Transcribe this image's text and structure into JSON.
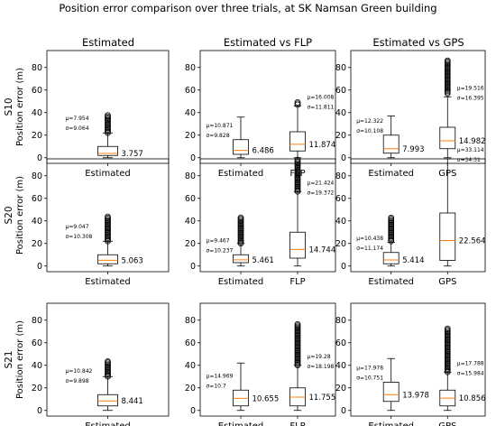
{
  "title": "Position error comparison over three trials, at SK Namsan Green building",
  "column_titles": [
    "Estimated",
    "Estimated vs FLP",
    "Estimated vs GPS"
  ],
  "row_labels": [
    "S10",
    "S20",
    "S21"
  ],
  "ylabel": "Position error (m)",
  "colors": {
    "box": "#000000",
    "median": "#ff7f0e",
    "background": "#ffffff"
  },
  "chart_data": [
    {
      "type": "box",
      "row": "S10",
      "column": "Estimated",
      "ylim": [
        -5,
        95
      ],
      "yticks": [
        0,
        20,
        40,
        60,
        80
      ],
      "categories": [
        "Estimated"
      ],
      "series": [
        {
          "name": "Estimated",
          "q1": 2,
          "median": 3.757,
          "q3": 10,
          "whisker_low": 0,
          "whisker_high": 22,
          "outliers_from": 22,
          "outliers_to": 38,
          "median_label": "3.757",
          "stats": [
            "μ=7.954",
            "σ=9.064"
          ]
        }
      ]
    },
    {
      "type": "box",
      "row": "S10",
      "column": "Estimated vs FLP",
      "ylim": [
        -5,
        95
      ],
      "yticks": [
        0,
        20,
        40,
        60,
        80
      ],
      "categories": [
        "Estimated",
        "FLP"
      ],
      "series": [
        {
          "name": "Estimated",
          "q1": 3,
          "median": 6.486,
          "q3": 16,
          "whisker_low": 0,
          "whisker_high": 36,
          "median_label": "6.486",
          "stats": [
            "μ=10.871",
            "σ=9.828"
          ]
        },
        {
          "name": "FLP",
          "q1": 6,
          "median": 11.874,
          "q3": 23,
          "whisker_low": 0,
          "whisker_high": 46,
          "outliers_from": 47,
          "outliers_to": 50,
          "median_label": "11.874",
          "stats": [
            "μ=16.008",
            "σ=11.811"
          ]
        }
      ]
    },
    {
      "type": "box",
      "row": "S10",
      "column": "Estimated vs GPS",
      "ylim": [
        -5,
        95
      ],
      "yticks": [
        0,
        20,
        40,
        60,
        80
      ],
      "categories": [
        "Estimated",
        "GPS"
      ],
      "series": [
        {
          "name": "Estimated",
          "q1": 4,
          "median": 7.993,
          "q3": 20,
          "whisker_low": 0,
          "whisker_high": 37,
          "median_label": "7.993",
          "stats": [
            "μ=12.322",
            "σ=10.108"
          ]
        },
        {
          "name": "GPS",
          "q1": 8,
          "median": 14.982,
          "q3": 27,
          "whisker_low": 0,
          "whisker_high": 54,
          "outliers_from": 57,
          "outliers_to": 87,
          "median_label": "14.982",
          "stats": [
            "μ=19.516",
            "σ=16.395"
          ]
        }
      ]
    },
    {
      "type": "box",
      "row": "S20",
      "column": "Estimated",
      "ylim": [
        -5,
        95
      ],
      "yticks": [
        0,
        20,
        40,
        60,
        80
      ],
      "categories": [
        "Estimated"
      ],
      "series": [
        {
          "name": "Estimated",
          "q1": 2,
          "median": 5.063,
          "q3": 10,
          "whisker_low": 0,
          "whisker_high": 22,
          "outliers_from": 22,
          "outliers_to": 44,
          "median_label": "5.063",
          "stats": [
            "μ=9.047",
            "σ=10.308"
          ]
        }
      ]
    },
    {
      "type": "box",
      "row": "S20",
      "column": "Estimated vs FLP",
      "ylim": [
        -5,
        95
      ],
      "yticks": [
        0,
        20,
        40,
        60,
        80
      ],
      "categories": [
        "Estimated",
        "FLP"
      ],
      "series": [
        {
          "name": "Estimated",
          "q1": 3,
          "median": 5.461,
          "q3": 10,
          "whisker_low": 0,
          "whisker_high": 20,
          "outliers_from": 20,
          "outliers_to": 43,
          "median_label": "5.461",
          "stats": [
            "μ=9.467",
            "σ=10.237"
          ]
        },
        {
          "name": "FLP",
          "q1": 7,
          "median": 14.744,
          "q3": 30,
          "whisker_low": 0,
          "whisker_high": 66,
          "outliers_from": 66,
          "outliers_to": 95,
          "median_label": "14.744",
          "stats": [
            "μ=21.424",
            "σ=19.372"
          ]
        }
      ]
    },
    {
      "type": "box",
      "row": "S20",
      "column": "Estimated vs GPS",
      "ylim": [
        -5,
        95
      ],
      "yticks": [
        0,
        20,
        40,
        60,
        80
      ],
      "categories": [
        "Estimated",
        "GPS"
      ],
      "series": [
        {
          "name": "Estimated",
          "q1": 2,
          "median": 5.414,
          "q3": 12,
          "whisker_low": 0,
          "whisker_high": 21,
          "outliers_from": 22,
          "outliers_to": 43,
          "median_label": "5.414",
          "stats": [
            "μ=10.438",
            "σ=11.174"
          ]
        },
        {
          "name": "GPS",
          "q1": 5,
          "median": 22.564,
          "q3": 47,
          "whisker_low": 0,
          "whisker_high": 95,
          "median_label": "22.564",
          "stats": [
            "μ=33.114",
            "σ=34.31"
          ]
        }
      ]
    },
    {
      "type": "box",
      "row": "S21",
      "column": "Estimated",
      "ylim": [
        -5,
        95
      ],
      "yticks": [
        0,
        20,
        40,
        60,
        80
      ],
      "categories": [
        "Estimated"
      ],
      "series": [
        {
          "name": "Estimated",
          "q1": 4,
          "median": 8.441,
          "q3": 14,
          "whisker_low": 0,
          "whisker_high": 30,
          "outliers_from": 30,
          "outliers_to": 44,
          "median_label": "8.441",
          "stats": [
            "μ=10.842",
            "σ=9.898"
          ]
        }
      ]
    },
    {
      "type": "box",
      "row": "S21",
      "column": "Estimated vs FLP",
      "ylim": [
        -5,
        95
      ],
      "yticks": [
        0,
        20,
        40,
        60,
        80
      ],
      "categories": [
        "Estimated",
        "FLP"
      ],
      "series": [
        {
          "name": "Estimated",
          "q1": 4,
          "median": 10.655,
          "q3": 18,
          "whisker_low": 0,
          "whisker_high": 42,
          "median_label": "10.655",
          "stats": [
            "μ=14.969",
            "σ=10.7"
          ]
        },
        {
          "name": "FLP",
          "q1": 4,
          "median": 11.755,
          "q3": 20,
          "whisker_low": 0,
          "whisker_high": 40,
          "outliers_from": 40,
          "outliers_to": 77,
          "median_label": "11.755",
          "stats": [
            "μ=19.28",
            "σ=18.198"
          ]
        }
      ]
    },
    {
      "type": "box",
      "row": "S21",
      "column": "Estimated vs GPS",
      "ylim": [
        -5,
        95
      ],
      "yticks": [
        0,
        20,
        40,
        60,
        80
      ],
      "categories": [
        "Estimated",
        "GPS"
      ],
      "series": [
        {
          "name": "Estimated",
          "q1": 8,
          "median": 13.978,
          "q3": 25,
          "whisker_low": 0,
          "whisker_high": 46,
          "median_label": "13.978",
          "stats": [
            "μ=17.978",
            "σ=10.751"
          ]
        },
        {
          "name": "GPS",
          "q1": 4,
          "median": 10.856,
          "q3": 18,
          "whisker_low": 0,
          "whisker_high": 34,
          "outliers_from": 34,
          "outliers_to": 73,
          "median_label": "10.856",
          "stats": [
            "μ=17.788",
            "σ=15.984"
          ]
        }
      ]
    }
  ]
}
